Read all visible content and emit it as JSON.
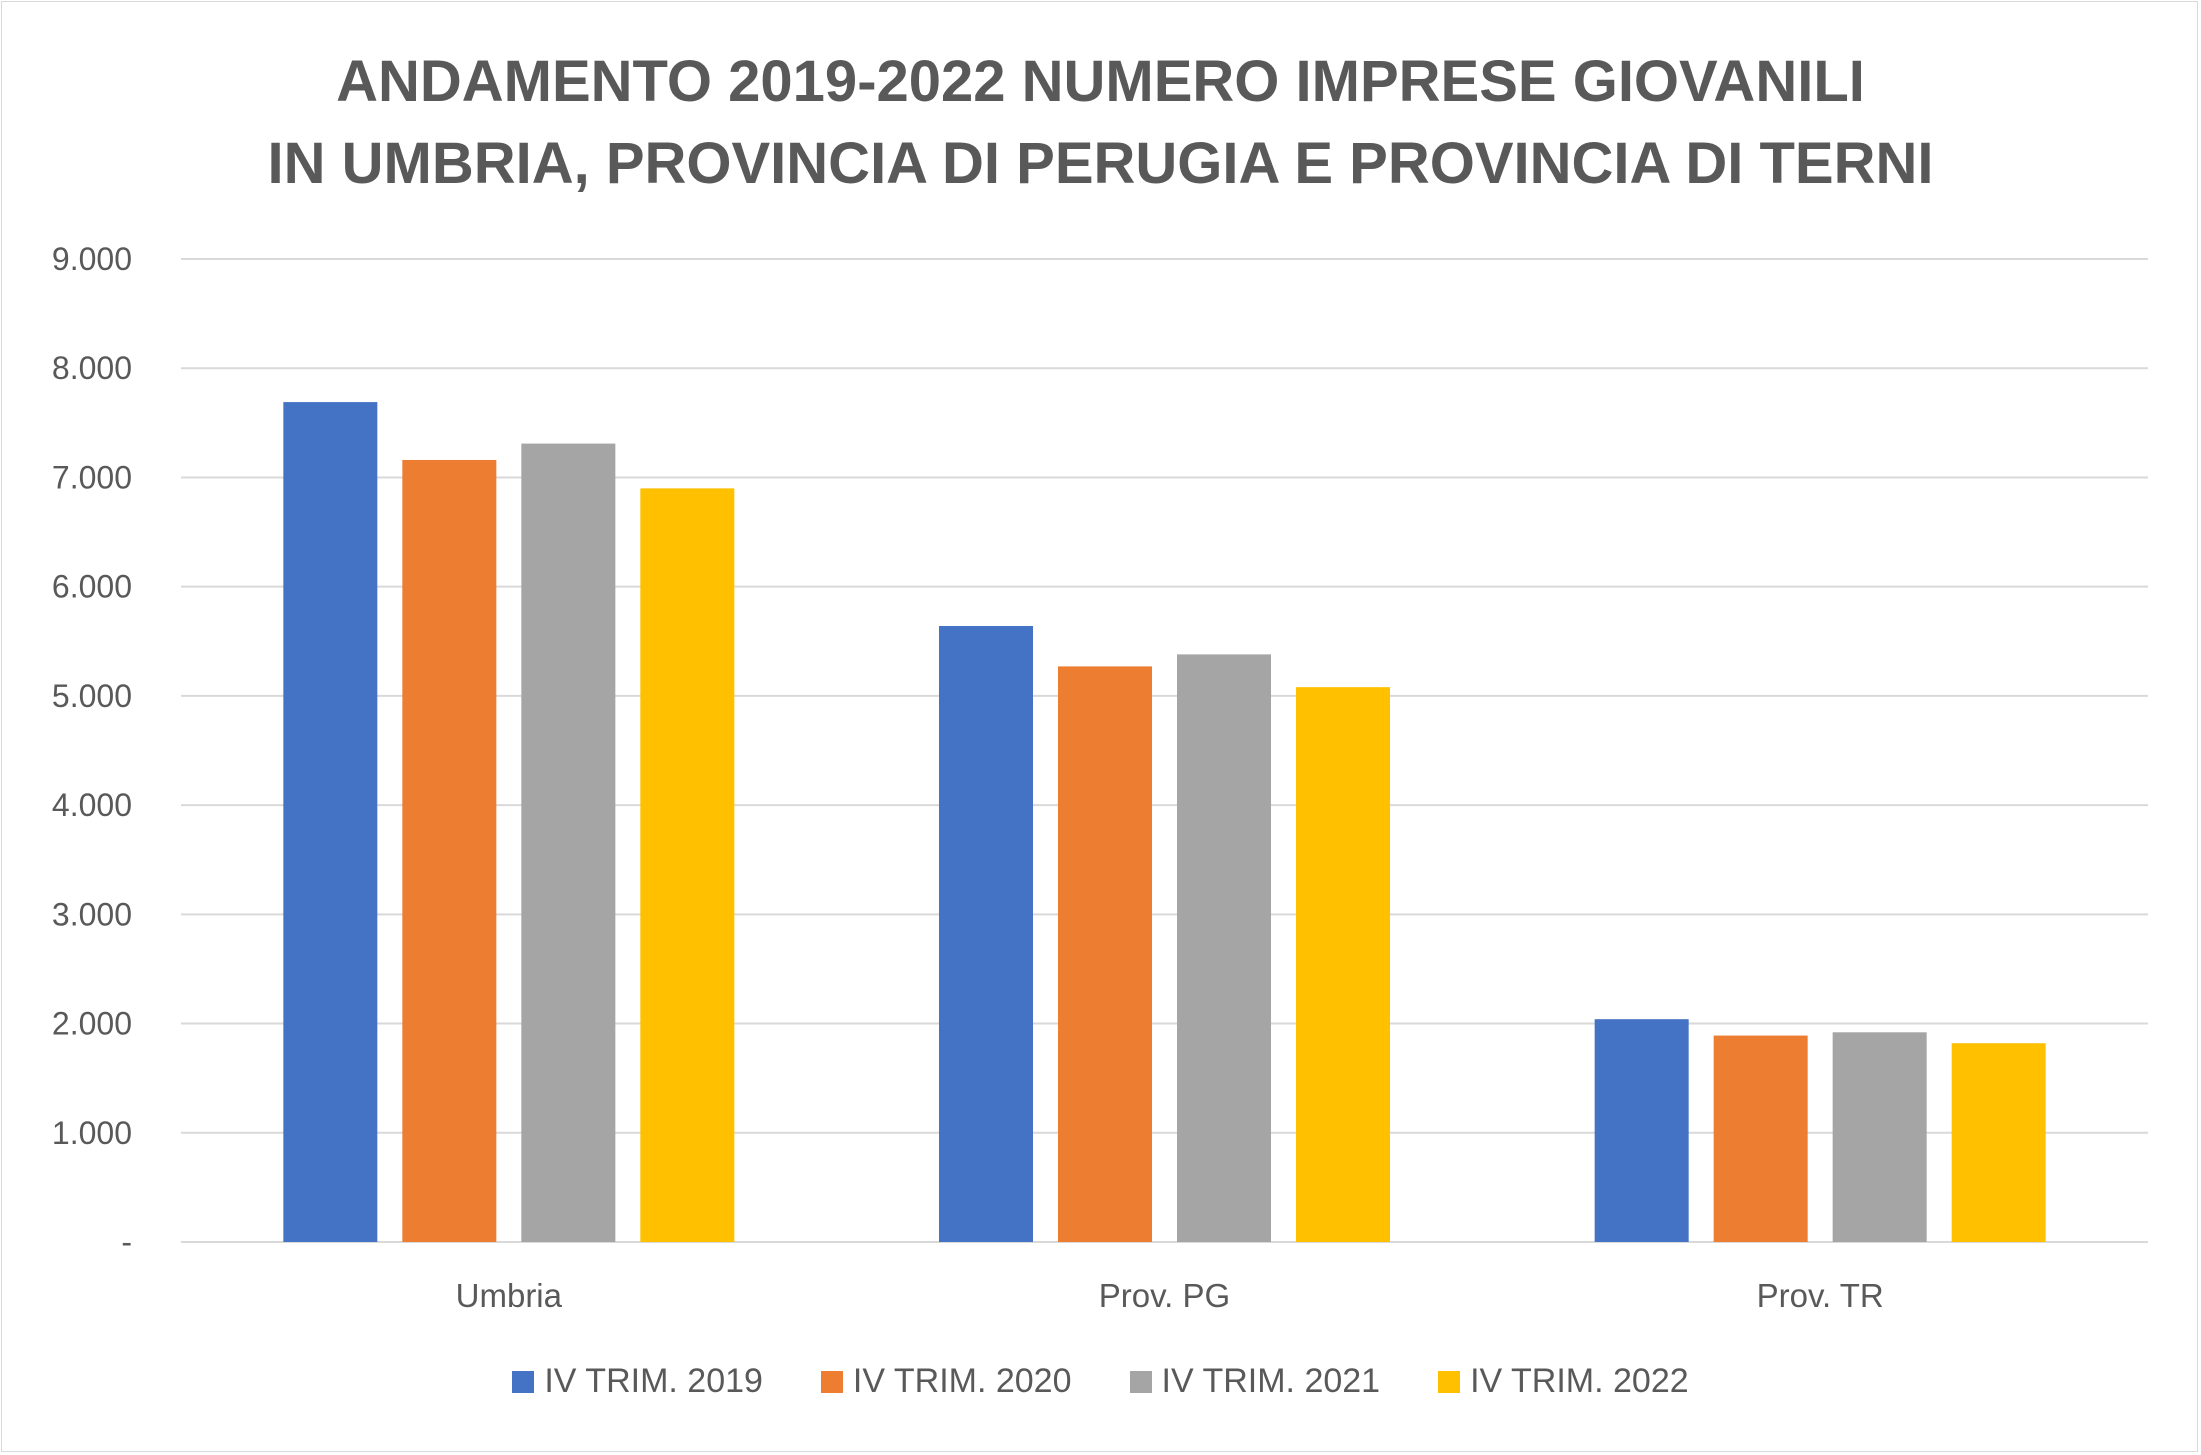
{
  "chart_data": {
    "type": "bar",
    "title_lines": [
      "ANDAMENTO 2019-2022 NUMERO IMPRESE GIOVANILI",
      "IN UMBRIA, PROVINCIA DI PERUGIA E PROVINCIA DI TERNI"
    ],
    "categories": [
      "Umbria",
      "Prov. PG",
      "Prov. TR"
    ],
    "series": [
      {
        "name": "IV TRIM. 2019",
        "color": "#4472C4",
        "values": [
          7690,
          5640,
          2040
        ]
      },
      {
        "name": "IV TRIM. 2020",
        "color": "#ED7D31",
        "values": [
          7160,
          5270,
          1890
        ]
      },
      {
        "name": "IV TRIM. 2021",
        "color": "#A5A5A5",
        "values": [
          7310,
          5380,
          1920
        ]
      },
      {
        "name": "IV TRIM. 2022",
        "color": "#FFC000",
        "values": [
          6900,
          5080,
          1820
        ]
      }
    ],
    "ylim": [
      0,
      9000
    ],
    "yticks": [
      0,
      1000,
      2000,
      3000,
      4000,
      5000,
      6000,
      7000,
      8000,
      9000
    ],
    "ytick_labels": [
      "-",
      "1.000",
      "2.000",
      "3.000",
      "4.000",
      "5.000",
      "6.000",
      "7.000",
      "8.000",
      "9.000"
    ],
    "grid": true,
    "legend_position": "bottom"
  }
}
